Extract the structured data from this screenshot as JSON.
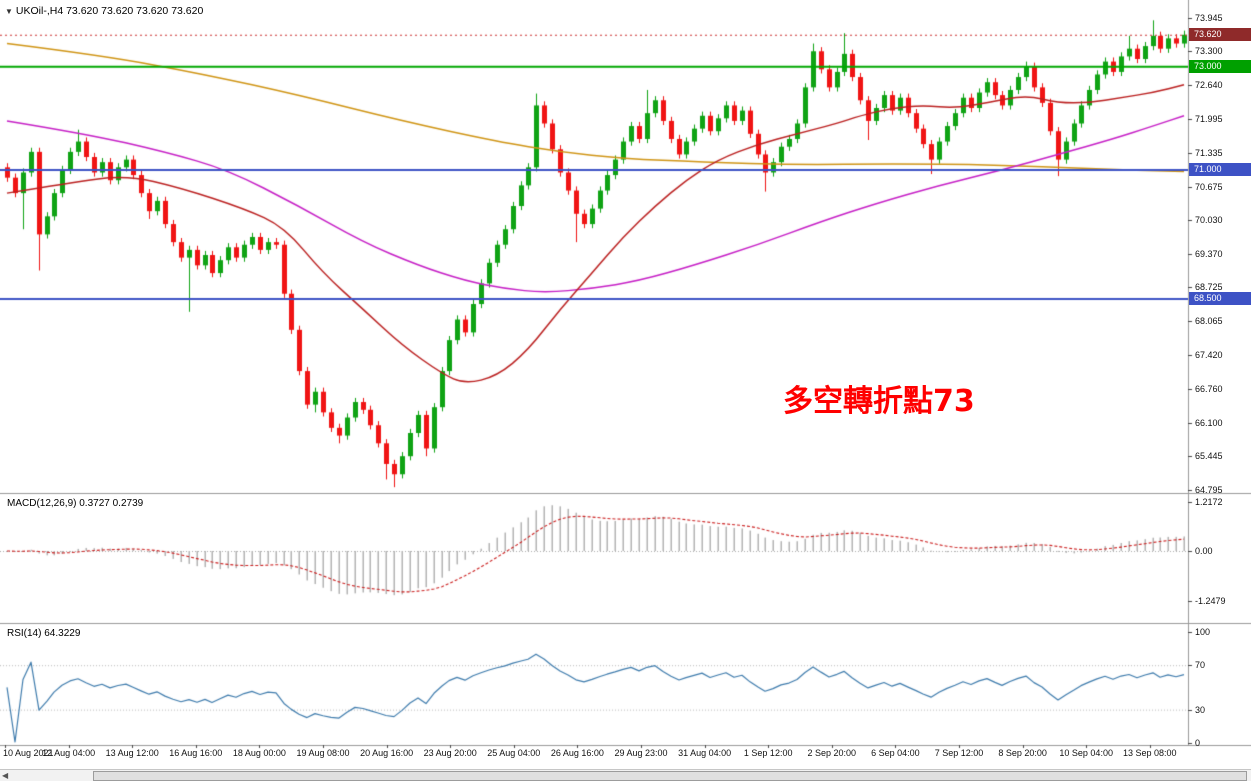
{
  "header": {
    "dropdown_icon": "▼",
    "title": "UKOil-,H4 73.620 73.620 73.620 73.620"
  },
  "annotation": {
    "text": "多空轉折點73",
    "color": "#ff0000"
  },
  "scrollbar": {
    "left_arrow": "◀"
  },
  "chart_data": {
    "type": "candlestick",
    "symbol": "UKOil-",
    "timeframe": "H4",
    "ohlc_display": {
      "open": "73.620",
      "high": "73.620",
      "low": "73.620",
      "close": "73.620"
    },
    "last_price": 73.62,
    "price_axis": {
      "min": 64.795,
      "max": 73.945,
      "ticks": [
        "73.945",
        "73.300",
        "72.640",
        "71.995",
        "71.335",
        "70.675",
        "70.030",
        "69.370",
        "68.725",
        "68.065",
        "67.420",
        "66.760",
        "66.100",
        "65.445",
        "64.795"
      ],
      "badges": [
        {
          "label": "73.620",
          "price": 73.62,
          "bg": "#8f2a2a"
        },
        {
          "label": "73.000",
          "price": 73.0,
          "bg": "#00a000"
        },
        {
          "label": "71.000",
          "price": 71.0,
          "bg": "#3d52c5"
        },
        {
          "label": "68.500",
          "price": 68.5,
          "bg": "#3d52c5"
        }
      ]
    },
    "hlines": [
      {
        "price": 73.0,
        "color": "#00a800",
        "width": 2
      },
      {
        "price": 71.0,
        "color": "#3d52c5",
        "width": 2
      },
      {
        "price": 68.5,
        "color": "#3d52c5",
        "width": 2
      }
    ],
    "time_axis": [
      "10 Aug 2021",
      "12 Aug 04:00",
      "13 Aug 12:00",
      "16 Aug 16:00",
      "18 Aug 00:00",
      "19 Aug 08:00",
      "20 Aug 16:00",
      "23 Aug 20:00",
      "25 Aug 04:00",
      "26 Aug 16:00",
      "29 Aug 23:00",
      "31 Aug 04:00",
      "1 Sep 12:00",
      "2 Sep 20:00",
      "6 Sep 04:00",
      "7 Sep 12:00",
      "8 Sep 20:00",
      "10 Sep 04:00",
      "13 Sep 08:00"
    ],
    "style": {
      "up": "#0fa314",
      "down": "#f01414",
      "last_price_line": "#cc3333",
      "divider": "#999999"
    },
    "candles": [
      [
        71.05,
        71.13,
        70.77,
        70.85
      ],
      [
        70.85,
        70.93,
        70.47,
        70.55
      ],
      [
        70.55,
        71.03,
        69.85,
        70.95
      ],
      [
        70.95,
        71.43,
        70.87,
        71.35
      ],
      [
        71.35,
        71.43,
        69.05,
        69.75
      ],
      [
        69.75,
        70.18,
        69.67,
        70.1
      ],
      [
        70.1,
        70.63,
        70.02,
        70.55
      ],
      [
        70.55,
        71.08,
        70.47,
        71.0
      ],
      [
        71.0,
        71.43,
        70.92,
        71.35
      ],
      [
        71.35,
        71.78,
        71.27,
        71.55
      ],
      [
        71.55,
        71.63,
        71.17,
        71.25
      ],
      [
        71.25,
        71.33,
        70.87,
        70.95
      ],
      [
        70.95,
        71.23,
        70.87,
        71.15
      ],
      [
        71.15,
        71.23,
        70.72,
        70.8
      ],
      [
        70.8,
        71.13,
        70.72,
        71.05
      ],
      [
        71.05,
        71.28,
        70.97,
        71.2
      ],
      [
        71.2,
        71.28,
        70.82,
        70.9
      ],
      [
        70.9,
        70.98,
        70.47,
        70.55
      ],
      [
        70.55,
        70.63,
        70.05,
        70.2
      ],
      [
        70.2,
        70.48,
        70.12,
        70.4
      ],
      [
        70.4,
        70.48,
        69.87,
        69.95
      ],
      [
        69.95,
        70.03,
        69.52,
        69.6
      ],
      [
        69.6,
        69.68,
        69.22,
        69.3
      ],
      [
        69.3,
        69.53,
        68.25,
        69.45
      ],
      [
        69.45,
        69.53,
        69.07,
        69.15
      ],
      [
        69.15,
        69.43,
        69.07,
        69.35
      ],
      [
        69.35,
        69.43,
        68.92,
        69.0
      ],
      [
        69.0,
        69.33,
        68.92,
        69.25
      ],
      [
        69.25,
        69.58,
        69.17,
        69.5
      ],
      [
        69.5,
        69.58,
        69.22,
        69.3
      ],
      [
        69.3,
        69.63,
        69.22,
        69.55
      ],
      [
        69.55,
        69.78,
        69.47,
        69.7
      ],
      [
        69.7,
        69.78,
        69.37,
        69.45
      ],
      [
        69.45,
        69.68,
        69.37,
        69.6
      ],
      [
        69.6,
        69.68,
        69.47,
        69.55
      ],
      [
        69.55,
        69.63,
        68.52,
        68.6
      ],
      [
        68.6,
        68.68,
        67.82,
        67.9
      ],
      [
        67.9,
        67.98,
        67.02,
        67.1
      ],
      [
        67.1,
        67.18,
        66.37,
        66.45
      ],
      [
        66.45,
        66.78,
        66.3,
        66.7
      ],
      [
        66.7,
        66.78,
        66.22,
        66.3
      ],
      [
        66.3,
        66.38,
        65.92,
        66.0
      ],
      [
        66.0,
        66.08,
        65.7,
        65.85
      ],
      [
        65.85,
        66.28,
        65.77,
        66.2
      ],
      [
        66.2,
        66.58,
        66.12,
        66.5
      ],
      [
        66.5,
        66.58,
        66.27,
        66.35
      ],
      [
        66.35,
        66.43,
        65.97,
        66.05
      ],
      [
        66.05,
        66.13,
        65.62,
        65.7
      ],
      [
        65.7,
        65.78,
        65.0,
        65.3
      ],
      [
        65.3,
        65.38,
        64.85,
        65.1
      ],
      [
        65.1,
        65.53,
        65.02,
        65.45
      ],
      [
        65.45,
        65.98,
        65.37,
        65.9
      ],
      [
        65.9,
        66.33,
        65.82,
        66.25
      ],
      [
        66.25,
        66.33,
        65.45,
        65.6
      ],
      [
        65.6,
        66.48,
        65.52,
        66.4
      ],
      [
        66.4,
        67.18,
        66.32,
        67.1
      ],
      [
        67.1,
        67.78,
        67.02,
        67.7
      ],
      [
        67.7,
        68.18,
        67.62,
        68.1
      ],
      [
        68.1,
        68.18,
        67.77,
        67.85
      ],
      [
        67.85,
        68.48,
        67.77,
        68.4
      ],
      [
        68.4,
        68.88,
        68.32,
        68.8
      ],
      [
        68.8,
        69.28,
        68.72,
        69.2
      ],
      [
        69.2,
        69.63,
        69.12,
        69.55
      ],
      [
        69.55,
        69.93,
        69.47,
        69.85
      ],
      [
        69.85,
        70.38,
        69.77,
        70.3
      ],
      [
        70.3,
        70.78,
        70.22,
        70.7
      ],
      [
        70.7,
        71.13,
        70.62,
        71.05
      ],
      [
        71.05,
        72.48,
        70.97,
        72.25
      ],
      [
        72.25,
        72.33,
        71.82,
        71.9
      ],
      [
        71.9,
        71.98,
        71.32,
        71.4
      ],
      [
        71.4,
        71.48,
        70.87,
        70.95
      ],
      [
        70.95,
        71.03,
        70.52,
        70.6
      ],
      [
        70.6,
        70.68,
        69.6,
        70.15
      ],
      [
        70.15,
        70.23,
        69.87,
        69.95
      ],
      [
        69.95,
        70.33,
        69.87,
        70.25
      ],
      [
        70.25,
        70.68,
        70.17,
        70.6
      ],
      [
        70.6,
        70.98,
        70.52,
        70.9
      ],
      [
        70.9,
        71.28,
        70.82,
        71.2
      ],
      [
        71.2,
        71.63,
        71.12,
        71.55
      ],
      [
        71.55,
        71.93,
        71.47,
        71.85
      ],
      [
        71.85,
        71.93,
        71.52,
        71.6
      ],
      [
        71.6,
        72.55,
        71.52,
        72.1
      ],
      [
        72.1,
        72.43,
        72.02,
        72.35
      ],
      [
        72.35,
        72.43,
        71.87,
        71.95
      ],
      [
        71.95,
        72.03,
        71.52,
        71.6
      ],
      [
        71.6,
        71.68,
        71.22,
        71.3
      ],
      [
        71.3,
        71.63,
        71.22,
        71.55
      ],
      [
        71.55,
        71.88,
        71.47,
        71.8
      ],
      [
        71.8,
        72.13,
        71.72,
        72.05
      ],
      [
        72.05,
        72.13,
        71.67,
        71.75
      ],
      [
        71.75,
        72.08,
        71.67,
        72.0
      ],
      [
        72.0,
        72.33,
        71.92,
        72.25
      ],
      [
        72.25,
        72.33,
        71.87,
        71.95
      ],
      [
        71.95,
        72.23,
        71.87,
        72.15
      ],
      [
        72.15,
        72.23,
        71.62,
        71.7
      ],
      [
        71.7,
        71.78,
        71.22,
        71.3
      ],
      [
        71.3,
        71.38,
        70.58,
        70.95
      ],
      [
        70.95,
        71.23,
        70.87,
        71.15
      ],
      [
        71.15,
        71.53,
        71.07,
        71.45
      ],
      [
        71.45,
        71.68,
        71.37,
        71.6
      ],
      [
        71.6,
        71.98,
        71.52,
        71.9
      ],
      [
        71.9,
        72.68,
        71.82,
        72.6
      ],
      [
        72.6,
        73.45,
        72.52,
        73.3
      ],
      [
        73.3,
        73.38,
        72.87,
        72.95
      ],
      [
        72.95,
        73.03,
        72.52,
        72.6
      ],
      [
        72.6,
        72.98,
        72.52,
        72.9
      ],
      [
        72.9,
        73.65,
        72.82,
        73.25
      ],
      [
        73.25,
        73.33,
        72.72,
        72.8
      ],
      [
        72.8,
        72.88,
        72.27,
        72.35
      ],
      [
        72.35,
        72.43,
        71.58,
        71.95
      ],
      [
        71.95,
        72.28,
        71.87,
        72.2
      ],
      [
        72.2,
        72.53,
        72.12,
        72.45
      ],
      [
        72.45,
        72.53,
        72.07,
        72.15
      ],
      [
        72.15,
        72.48,
        72.07,
        72.4
      ],
      [
        72.4,
        72.48,
        72.02,
        72.1
      ],
      [
        72.1,
        72.18,
        71.72,
        71.8
      ],
      [
        71.8,
        71.88,
        71.42,
        71.5
      ],
      [
        71.5,
        71.58,
        70.92,
        71.2
      ],
      [
        71.2,
        71.63,
        71.12,
        71.55
      ],
      [
        71.55,
        71.93,
        71.47,
        71.85
      ],
      [
        71.85,
        72.18,
        71.77,
        72.1
      ],
      [
        72.1,
        72.48,
        72.02,
        72.4
      ],
      [
        72.4,
        72.48,
        72.12,
        72.2
      ],
      [
        72.2,
        72.58,
        72.12,
        72.5
      ],
      [
        72.5,
        72.78,
        72.42,
        72.7
      ],
      [
        72.7,
        72.78,
        72.37,
        72.45
      ],
      [
        72.45,
        72.53,
        72.17,
        72.25
      ],
      [
        72.25,
        72.63,
        72.17,
        72.55
      ],
      [
        72.55,
        72.88,
        72.47,
        72.8
      ],
      [
        72.8,
        73.1,
        72.72,
        73.0
      ],
      [
        73.0,
        73.08,
        72.52,
        72.6
      ],
      [
        72.6,
        72.68,
        72.22,
        72.3
      ],
      [
        72.3,
        72.38,
        71.67,
        71.75
      ],
      [
        71.75,
        71.83,
        70.88,
        71.2
      ],
      [
        71.2,
        71.63,
        71.12,
        71.55
      ],
      [
        71.55,
        71.98,
        71.47,
        71.9
      ],
      [
        71.9,
        72.33,
        71.82,
        72.25
      ],
      [
        72.25,
        72.63,
        72.17,
        72.55
      ],
      [
        72.55,
        72.93,
        72.47,
        72.85
      ],
      [
        72.85,
        73.18,
        72.77,
        73.1
      ],
      [
        73.1,
        73.18,
        72.82,
        72.9
      ],
      [
        72.9,
        73.28,
        72.82,
        73.2
      ],
      [
        73.2,
        73.6,
        73.12,
        73.35
      ],
      [
        73.35,
        73.43,
        73.07,
        73.15
      ],
      [
        73.15,
        73.48,
        73.07,
        73.4
      ],
      [
        73.4,
        73.9,
        73.32,
        73.6
      ],
      [
        73.6,
        73.68,
        73.27,
        73.35
      ],
      [
        73.35,
        73.63,
        73.27,
        73.55
      ],
      [
        73.55,
        73.63,
        73.37,
        73.45
      ],
      [
        73.45,
        73.7,
        73.37,
        73.62
      ]
    ],
    "overlays": [
      {
        "name": "ma-orange",
        "color": "#d09515",
        "width": 1.5,
        "anchors": [
          [
            0,
            73.45
          ],
          [
            12,
            73.22
          ],
          [
            25,
            72.85
          ],
          [
            37,
            72.45
          ],
          [
            50,
            71.95
          ],
          [
            62,
            71.55
          ],
          [
            70,
            71.35
          ],
          [
            78,
            71.22
          ],
          [
            88,
            71.15
          ],
          [
            100,
            71.1
          ],
          [
            112,
            71.12
          ],
          [
            125,
            71.1
          ],
          [
            137,
            71.02
          ],
          [
            149,
            70.97
          ]
        ]
      },
      {
        "name": "ma-magenta",
        "color": "#c61fc6",
        "width": 1.5,
        "anchors": [
          [
            0,
            71.95
          ],
          [
            10,
            71.7
          ],
          [
            20,
            71.35
          ],
          [
            28,
            71.0
          ],
          [
            37,
            70.3
          ],
          [
            45,
            69.6
          ],
          [
            52,
            69.15
          ],
          [
            58,
            68.85
          ],
          [
            63,
            68.7
          ],
          [
            68,
            68.62
          ],
          [
            74,
            68.7
          ],
          [
            80,
            68.85
          ],
          [
            87,
            69.15
          ],
          [
            95,
            69.55
          ],
          [
            103,
            70.0
          ],
          [
            110,
            70.35
          ],
          [
            118,
            70.7
          ],
          [
            126,
            71.0
          ],
          [
            133,
            71.3
          ],
          [
            140,
            71.6
          ],
          [
            145,
            71.85
          ],
          [
            149,
            72.05
          ]
        ]
      },
      {
        "name": "ma-red",
        "color": "#bb2020",
        "width": 1.5,
        "anchors": [
          [
            0,
            70.55
          ],
          [
            8,
            70.75
          ],
          [
            15,
            70.9
          ],
          [
            22,
            70.65
          ],
          [
            30,
            70.25
          ],
          [
            35,
            69.9
          ],
          [
            40,
            69.0
          ],
          [
            45,
            68.3
          ],
          [
            50,
            67.6
          ],
          [
            55,
            67.05
          ],
          [
            58,
            66.85
          ],
          [
            62,
            67.0
          ],
          [
            66,
            67.5
          ],
          [
            70,
            68.3
          ],
          [
            74,
            69.0
          ],
          [
            78,
            69.7
          ],
          [
            82,
            70.3
          ],
          [
            86,
            70.8
          ],
          [
            90,
            71.2
          ],
          [
            95,
            71.5
          ],
          [
            100,
            71.7
          ],
          [
            105,
            71.9
          ],
          [
            108,
            72.05
          ],
          [
            112,
            72.2
          ],
          [
            116,
            72.25
          ],
          [
            120,
            72.2
          ],
          [
            124,
            72.3
          ],
          [
            129,
            72.45
          ],
          [
            133,
            72.3
          ],
          [
            137,
            72.3
          ],
          [
            141,
            72.4
          ],
          [
            145,
            72.5
          ],
          [
            149,
            72.65
          ]
        ]
      }
    ],
    "indicators": {
      "macd": {
        "header": "MACD(12,26,9) 0.3727 0.2739",
        "fast": 12,
        "slow": 26,
        "signal": 9,
        "values": [
          0.3727,
          0.2739
        ],
        "axis": [
          {
            "label": "1.2172",
            "value": 1.2172
          },
          {
            "label": "0.00",
            "value": 0
          },
          {
            "label": "-1.2479",
            "value": -1.2479
          }
        ],
        "hist_color": "#b4b4b4",
        "signal_color": "#cc2020"
      },
      "rsi": {
        "header": "RSI(14) 64.3229",
        "period": 14,
        "value": 64.3229,
        "axis": [
          {
            "label": "100",
            "value": 100
          },
          {
            "label": "70",
            "value": 70
          },
          {
            "label": "30",
            "value": 30
          },
          {
            "label": "0",
            "value": 0
          }
        ],
        "levels": [
          30,
          70
        ],
        "line_color": "#3f7cad"
      }
    }
  }
}
